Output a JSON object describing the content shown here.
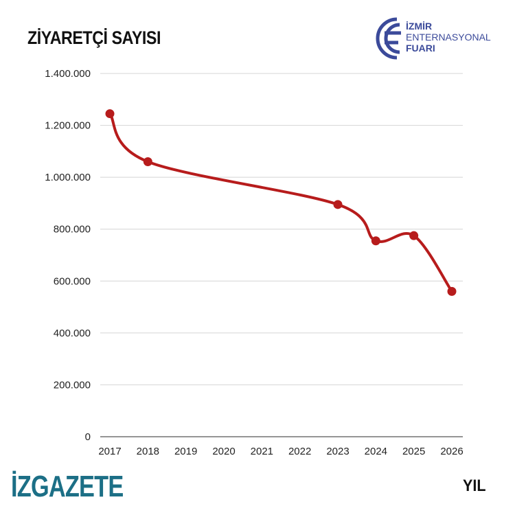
{
  "brand": {
    "name": "İZGAZETE",
    "color": "#1c6f86"
  },
  "logo": {
    "line1": "İZMİR",
    "line2": "ENTERNASYONAL",
    "line3": "FUARI",
    "color": "#3b4a9a",
    "icon": "fuar-logo-icon"
  },
  "chart_data": {
    "type": "line",
    "title": "ZİYARETÇİ SAYISI",
    "xlabel": "YIL",
    "ylabel": "",
    "x": [
      "2017",
      "2018",
      "2019",
      "2020",
      "2021",
      "2022",
      "2023",
      "2024",
      "2025",
      "2026"
    ],
    "series": [
      {
        "color": "#b71c1c",
        "points": [
          {
            "x": "2017",
            "y": 1245000
          },
          {
            "x": "2018",
            "y": 1060000
          },
          {
            "x": "2023",
            "y": 895000
          },
          {
            "x": "2024",
            "y": 755000
          },
          {
            "x": "2025",
            "y": 775000
          },
          {
            "x": "2026",
            "y": 560000
          }
        ]
      }
    ],
    "ylim": [
      0,
      1400000
    ],
    "yticks": [
      0,
      200000,
      400000,
      600000,
      800000,
      1000000,
      1200000,
      1400000
    ],
    "ytick_labels": [
      "0",
      "200.000",
      "400.000",
      "600.000",
      "800.000",
      "1.000.000",
      "1.200.000",
      "1.400.000"
    ],
    "grid": true,
    "legend": "none"
  }
}
